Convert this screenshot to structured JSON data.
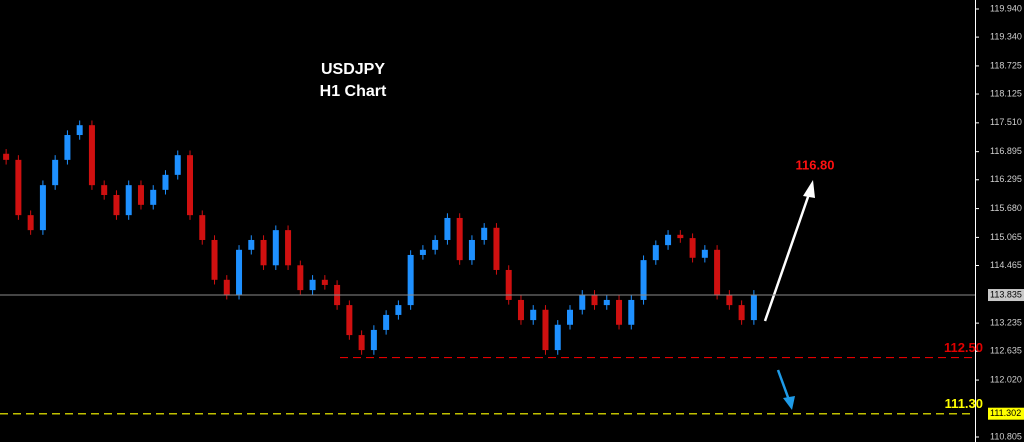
{
  "chart_data": {
    "type": "candlestick",
    "title": "USDJPY",
    "subtitle": "H1 Chart",
    "open": [
      116.85,
      116.72,
      115.54,
      115.22,
      116.18,
      116.72,
      117.25,
      117.46,
      116.18,
      115.97,
      115.54,
      116.18,
      115.76,
      116.08,
      116.4,
      116.82,
      115.54,
      115.01,
      114.16,
      113.84,
      114.8,
      115.01,
      114.47,
      115.22,
      114.47,
      113.94,
      114.16,
      114.05,
      113.62,
      112.98,
      112.66,
      113.09,
      113.41,
      113.62,
      114.69,
      114.8,
      115.01,
      115.48,
      114.58,
      115.01,
      115.27,
      114.37,
      113.73,
      113.3,
      113.52,
      112.66,
      113.2,
      113.52,
      113.84,
      113.62,
      113.73,
      113.2,
      113.73,
      114.58,
      114.9,
      115.12,
      115.05,
      114.63,
      114.8,
      113.84,
      113.62,
      113.3
    ],
    "high": [
      116.95,
      116.82,
      115.64,
      116.28,
      116.82,
      117.35,
      117.56,
      117.56,
      116.28,
      116.07,
      116.28,
      116.28,
      116.18,
      116.5,
      116.92,
      116.92,
      115.64,
      115.11,
      114.26,
      114.9,
      115.11,
      115.11,
      115.32,
      115.32,
      114.57,
      114.26,
      114.26,
      114.15,
      113.72,
      113.08,
      113.19,
      113.51,
      113.72,
      114.79,
      114.9,
      115.11,
      115.58,
      115.58,
      115.11,
      115.37,
      115.37,
      114.47,
      113.83,
      113.62,
      113.62,
      113.3,
      113.62,
      113.94,
      113.94,
      113.83,
      113.83,
      113.83,
      114.68,
      115.0,
      115.22,
      115.22,
      115.15,
      114.9,
      114.9,
      113.94,
      113.72,
      113.94
    ],
    "low": [
      116.62,
      115.44,
      115.12,
      115.12,
      116.08,
      116.62,
      117.15,
      116.08,
      115.87,
      115.44,
      115.44,
      115.66,
      115.66,
      115.98,
      116.3,
      115.44,
      114.91,
      114.06,
      113.74,
      113.74,
      114.7,
      114.37,
      114.37,
      114.37,
      113.84,
      113.84,
      113.95,
      113.52,
      112.88,
      112.56,
      112.56,
      112.99,
      113.31,
      113.52,
      114.59,
      114.7,
      114.91,
      114.48,
      114.48,
      114.91,
      114.27,
      113.63,
      113.2,
      113.2,
      112.56,
      112.56,
      113.1,
      113.42,
      113.52,
      113.52,
      113.1,
      113.1,
      113.63,
      114.48,
      114.8,
      114.95,
      114.53,
      114.53,
      113.74,
      113.52,
      113.2,
      113.2
    ],
    "close": [
      116.72,
      115.54,
      115.22,
      116.18,
      116.72,
      117.25,
      117.46,
      116.18,
      115.97,
      115.54,
      116.18,
      115.76,
      116.08,
      116.4,
      116.82,
      115.54,
      115.01,
      114.16,
      113.84,
      114.8,
      115.01,
      114.47,
      115.22,
      114.47,
      113.94,
      114.16,
      114.05,
      113.62,
      112.98,
      112.66,
      113.09,
      113.41,
      113.62,
      114.69,
      114.8,
      115.01,
      115.48,
      114.58,
      115.01,
      115.27,
      114.37,
      113.73,
      113.3,
      113.52,
      112.66,
      113.2,
      113.52,
      113.84,
      113.62,
      113.73,
      113.2,
      113.73,
      114.58,
      114.9,
      115.12,
      115.05,
      114.63,
      114.8,
      113.84,
      113.62,
      113.3,
      113.84
    ],
    "up_color": "#1e90ff",
    "down_color": "#d01010",
    "ylim": [
      120.132,
      110.698
    ],
    "yticks": [
      {
        "value": 119.94,
        "label": "119.940"
      },
      {
        "value": 119.34,
        "label": "119.340"
      },
      {
        "value": 118.725,
        "label": "118.725"
      },
      {
        "value": 118.125,
        "label": "118.125"
      },
      {
        "value": 117.51,
        "label": "117.510"
      },
      {
        "value": 116.895,
        "label": "116.895"
      },
      {
        "value": 116.295,
        "label": "116.295"
      },
      {
        "value": 115.68,
        "label": "115.680"
      },
      {
        "value": 115.065,
        "label": "115.065"
      },
      {
        "value": 114.465,
        "label": "114.465"
      },
      {
        "value": 113.235,
        "label": "113.235"
      },
      {
        "value": 112.635,
        "label": "112.635"
      },
      {
        "value": 112.02,
        "label": "112.020"
      },
      {
        "value": 110.805,
        "label": "110.805"
      }
    ],
    "price_tags": [
      {
        "value": 113.835,
        "label": "113.835",
        "color": "#c8c8c8"
      },
      {
        "value": 111.302,
        "label": "111.302",
        "color": "#ffff00"
      }
    ],
    "levels": [
      {
        "value": 112.5,
        "label": "112.50",
        "color": "#e00000"
      },
      {
        "value": 111.3,
        "label": "111.30",
        "color": "#ffff00"
      }
    ],
    "target": {
      "label": "116.80",
      "color": "#ff1010"
    }
  }
}
